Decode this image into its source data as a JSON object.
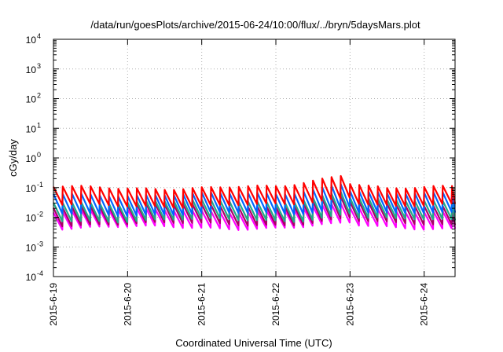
{
  "chart_data": {
    "type": "line",
    "title": "/data/run/goesPlots/archive/2015-06-24/10:00/flux/../bryn/5daysMars.plot",
    "xlabel": "Coordinated Universal Time (UTC)",
    "ylabel": "cGy/day",
    "yscale": "log",
    "ylim": [
      0.0001,
      10000
    ],
    "yticks": [
      {
        "base": "10",
        "exp": "-4",
        "value": 0.0001
      },
      {
        "base": "10",
        "exp": "-3",
        "value": 0.001
      },
      {
        "base": "10",
        "exp": "-2",
        "value": 0.01
      },
      {
        "base": "10",
        "exp": "-1",
        "value": 0.1
      },
      {
        "base": "10",
        "exp": "0",
        "value": 1
      },
      {
        "base": "10",
        "exp": "1",
        "value": 10
      },
      {
        "base": "10",
        "exp": "2",
        "value": 100
      },
      {
        "base": "10",
        "exp": "3",
        "value": 1000
      },
      {
        "base": "10",
        "exp": "4",
        "value": 10000
      }
    ],
    "xlim": [
      "2015-06-19 00:00",
      "2015-06-24 10:00"
    ],
    "xticks": [
      "2015-6-19",
      "2015-6-20",
      "2015-6-21",
      "2015-6-22",
      "2015-6-23",
      "2015-6-24"
    ],
    "grid": true,
    "sawtooth": {
      "period_hours": 3,
      "series_ranges": [
        {
          "peak": 0.1,
          "trough": 0.025
        },
        {
          "peak": 0.06,
          "trough": 0.013
        },
        {
          "peak": 0.034,
          "trough": 0.008
        },
        {
          "peak": 0.025,
          "trough": 0.006
        },
        {
          "peak": 0.017,
          "trough": 0.0045
        }
      ],
      "enhancement_2015-06-22_to_23": {
        "peak": 0.3,
        "at": "2015-06-22 22:00"
      }
    },
    "series": [
      {
        "color": "#ff0000"
      },
      {
        "color": "#0066ff"
      },
      {
        "color": "#22aa88"
      },
      {
        "color": "#aa0066"
      },
      {
        "color": "#ff00ff"
      }
    ]
  }
}
